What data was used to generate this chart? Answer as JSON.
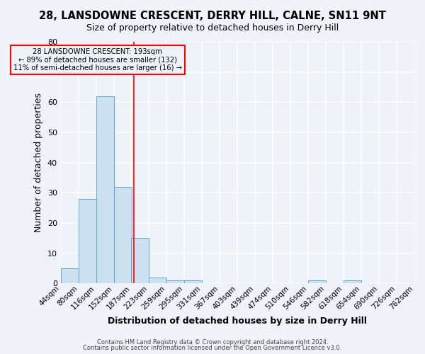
{
  "title1": "28, LANSDOWNE CRESCENT, DERRY HILL, CALNE, SN11 9NT",
  "title2": "Size of property relative to detached houses in Derry Hill",
  "xlabel": "Distribution of detached houses by size in Derry Hill",
  "ylabel": "Number of detached properties",
  "bin_labels": [
    "44sqm",
    "80sqm",
    "116sqm",
    "152sqm",
    "187sqm",
    "223sqm",
    "259sqm",
    "295sqm",
    "331sqm",
    "367sqm",
    "403sqm",
    "439sqm",
    "474sqm",
    "510sqm",
    "546sqm",
    "582sqm",
    "618sqm",
    "654sqm",
    "690sqm",
    "726sqm",
    "762sqm"
  ],
  "bin_edges": [
    44,
    80,
    116,
    152,
    187,
    223,
    259,
    295,
    331,
    367,
    403,
    439,
    474,
    510,
    546,
    582,
    618,
    654,
    690,
    726,
    762
  ],
  "bar_heights": [
    5,
    28,
    62,
    32,
    15,
    2,
    1,
    1,
    0,
    0,
    0,
    0,
    0,
    0,
    1,
    0,
    1,
    0,
    0,
    0
  ],
  "bar_color": "#cce0f0",
  "bar_edge_color": "#5ba8d4",
  "red_line_x": 193,
  "ylim": [
    0,
    80
  ],
  "yticks": [
    0,
    10,
    20,
    30,
    40,
    50,
    60,
    70,
    80
  ],
  "annotation_line1": "28 LANSDOWNE CRESCENT: 193sqm",
  "annotation_line2": "← 89% of detached houses are smaller (132)",
  "annotation_line3": "11% of semi-detached houses are larger (16) →",
  "footer1": "Contains HM Land Registry data © Crown copyright and database right 2024.",
  "footer2": "Contains public sector information licensed under the Open Government Licence v3.0.",
  "bg_color": "#f0f4fa",
  "plot_bg_color": "#eef3fa",
  "grid_color": "#ffffff",
  "title_fontsize": 10.5,
  "subtitle_fontsize": 9.0,
  "ylabel_fontsize": 9.0,
  "xlabel_fontsize": 9.0
}
